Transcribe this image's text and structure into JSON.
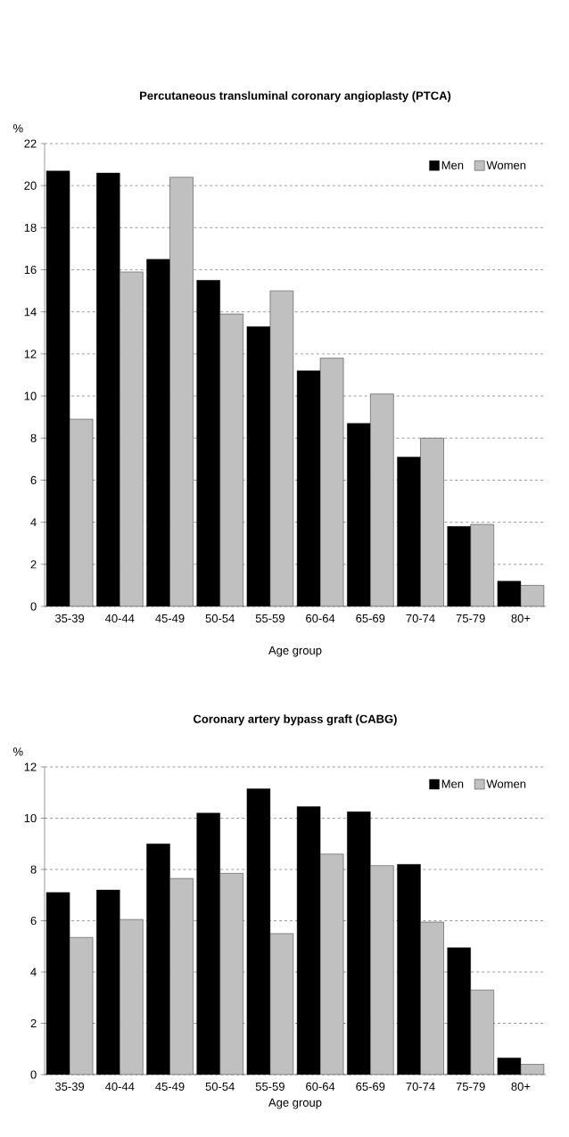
{
  "chart_data": [
    {
      "type": "bar",
      "title": "Percutaneous transluminal coronary angioplasty (PTCA)",
      "xlabel": "Age group",
      "ylabel": "%",
      "categories": [
        "35-39",
        "40-44",
        "45-49",
        "50-54",
        "55-59",
        "60-64",
        "65-69",
        "70-74",
        "75-79",
        "80+"
      ],
      "series": [
        {
          "name": "Men",
          "color": "#000000",
          "values": [
            20.7,
            20.6,
            16.5,
            15.5,
            13.3,
            11.2,
            8.7,
            7.1,
            3.8,
            1.2
          ]
        },
        {
          "name": "Women",
          "color": "#c0c0c0",
          "values": [
            8.9,
            15.9,
            20.4,
            13.9,
            15.0,
            11.8,
            10.1,
            8.0,
            3.9,
            1.0
          ]
        }
      ],
      "ylim": [
        0,
        22
      ],
      "yticks": [
        0,
        2,
        4,
        6,
        8,
        10,
        12,
        14,
        16,
        18,
        20,
        22
      ],
      "grid": "y",
      "legend": "top right"
    },
    {
      "type": "bar",
      "title": "Coronary artery bypass graft (CABG)",
      "xlabel": "Age group",
      "ylabel": "%",
      "categories": [
        "35-39",
        "40-44",
        "45-49",
        "50-54",
        "55-59",
        "60-64",
        "65-69",
        "70-74",
        "75-79",
        "80+"
      ],
      "series": [
        {
          "name": "Men",
          "color": "#000000",
          "values": [
            7.1,
            7.2,
            9.0,
            10.2,
            11.15,
            10.45,
            10.25,
            8.2,
            4.95,
            0.65
          ]
        },
        {
          "name": "Women",
          "color": "#c0c0c0",
          "values": [
            5.35,
            6.05,
            7.65,
            7.85,
            5.5,
            8.6,
            8.15,
            5.95,
            3.3,
            0.4
          ]
        }
      ],
      "ylim": [
        0,
        12
      ],
      "yticks": [
        0,
        2,
        4,
        6,
        8,
        10,
        12
      ],
      "grid": "y",
      "legend": "top right"
    }
  ]
}
